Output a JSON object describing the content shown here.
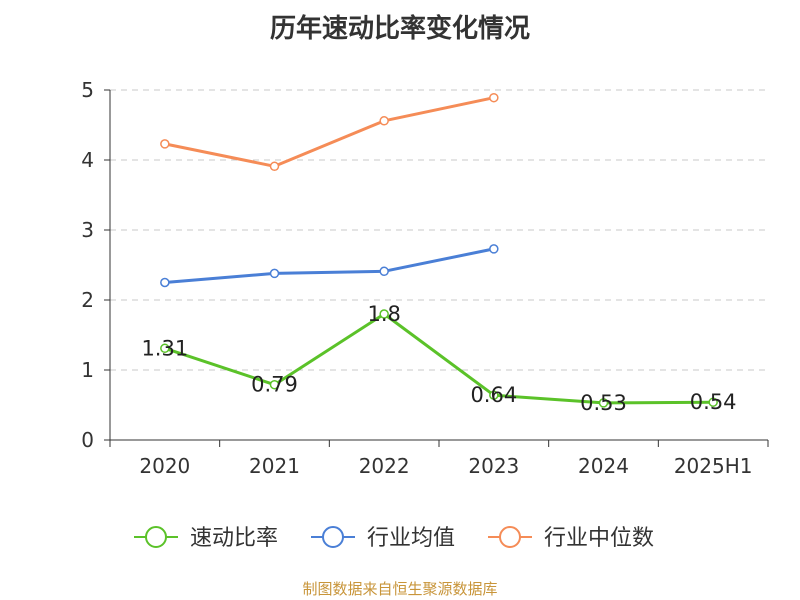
{
  "title": "历年速动比率变化情况",
  "footer": "制图数据来自恒生聚源数据库",
  "chart_data": {
    "type": "line",
    "title": "历年速动比率变化情况",
    "x": [
      "2020",
      "2021",
      "2022",
      "2023",
      "2024",
      "2025H1"
    ],
    "ylim": [
      0,
      5
    ],
    "yticks": [
      0,
      1,
      2,
      3,
      4,
      5
    ],
    "grid": "horizontal dashed",
    "legend_position": "bottom",
    "series": [
      {
        "name": "速动比率",
        "color": "#5bc229",
        "values": [
          1.31,
          0.79,
          1.8,
          0.64,
          0.53,
          0.54
        ],
        "labels": [
          "1.31",
          "0.79",
          "1.8",
          "0.64",
          "0.53",
          "0.54"
        ]
      },
      {
        "name": "行业均值",
        "color": "#4a7fd6",
        "values": [
          2.25,
          2.38,
          2.41,
          2.73,
          null,
          null
        ]
      },
      {
        "name": "行业中位数",
        "color": "#f58c57",
        "values": [
          4.23,
          3.91,
          4.56,
          4.89,
          null,
          null
        ]
      }
    ]
  }
}
